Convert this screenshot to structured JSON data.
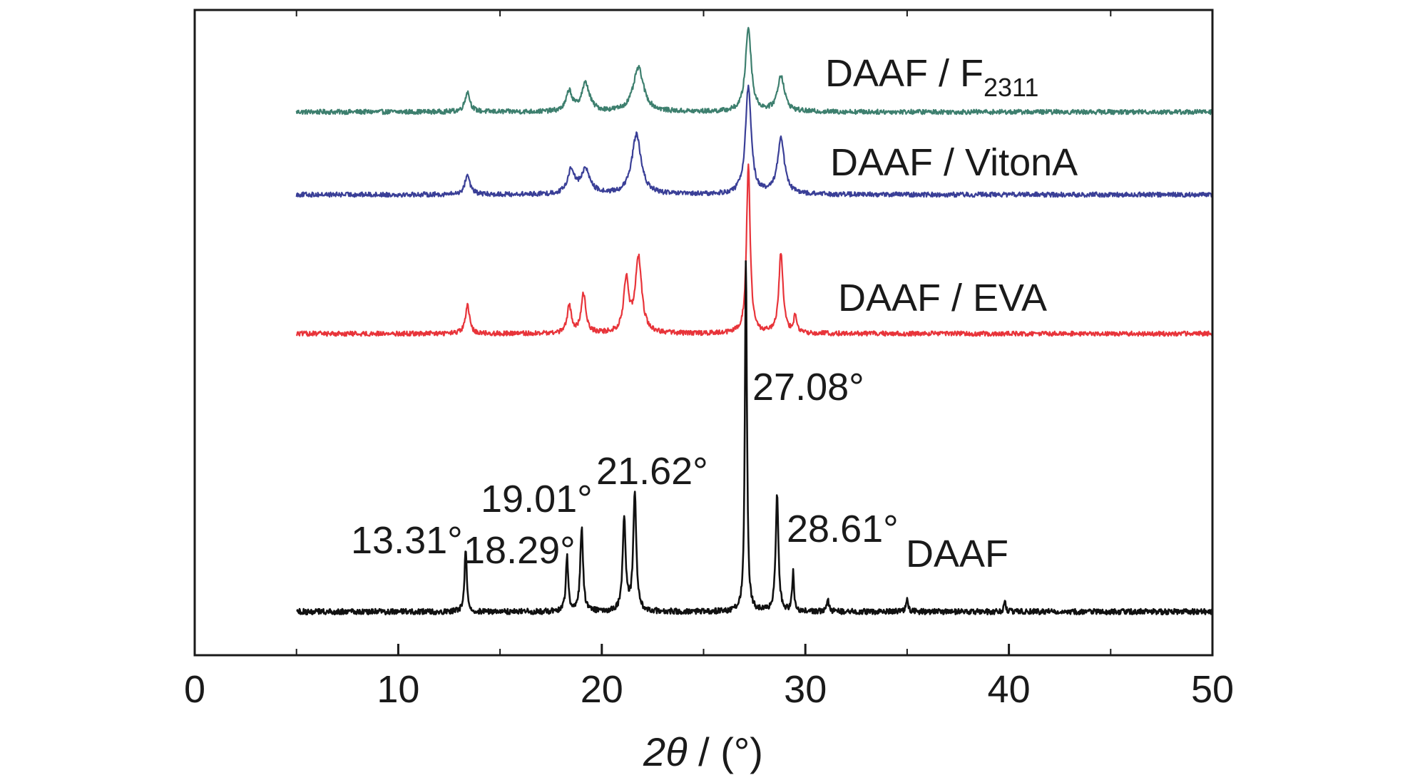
{
  "chart_data": {
    "type": "line",
    "xlabel_italic": "2θ",
    "xlabel_rest": " / (°)",
    "ylabel": "",
    "xlim": [
      0,
      50
    ],
    "xticks": [
      0,
      10,
      20,
      30,
      40,
      50
    ],
    "y_axis_ticks_labeled": false,
    "grid": false,
    "legend": "none (series labeled directly beside each trace)",
    "x_start": 5,
    "x_end": 50,
    "series": [
      {
        "name": "DAAF / F",
        "name_subscript": "2311",
        "color": "#3d7f6e",
        "baseline": 0.0,
        "noise": 0.006,
        "peaks": [
          {
            "x": 13.4,
            "height": 0.05,
            "width": 0.22
          },
          {
            "x": 18.4,
            "height": 0.05,
            "width": 0.25
          },
          {
            "x": 19.2,
            "height": 0.07,
            "width": 0.35
          },
          {
            "x": 21.8,
            "height": 0.11,
            "width": 0.45
          },
          {
            "x": 27.2,
            "height": 0.21,
            "width": 0.25
          },
          {
            "x": 28.8,
            "height": 0.09,
            "width": 0.3
          }
        ]
      },
      {
        "name": "DAAF / VitonA",
        "color": "#3a3f97",
        "baseline": 0.0,
        "noise": 0.006,
        "peaks": [
          {
            "x": 13.4,
            "height": 0.05,
            "width": 0.22
          },
          {
            "x": 18.5,
            "height": 0.06,
            "width": 0.3
          },
          {
            "x": 19.2,
            "height": 0.06,
            "width": 0.4
          },
          {
            "x": 21.7,
            "height": 0.15,
            "width": 0.4
          },
          {
            "x": 27.2,
            "height": 0.27,
            "width": 0.25
          },
          {
            "x": 28.8,
            "height": 0.14,
            "width": 0.3
          }
        ]
      },
      {
        "name": "DAAF / EVA",
        "color": "#e8343a",
        "baseline": 0.0,
        "noise": 0.006,
        "peaks": [
          {
            "x": 13.4,
            "height": 0.07,
            "width": 0.18
          },
          {
            "x": 18.4,
            "height": 0.07,
            "width": 0.18
          },
          {
            "x": 19.1,
            "height": 0.1,
            "width": 0.2
          },
          {
            "x": 21.2,
            "height": 0.13,
            "width": 0.22
          },
          {
            "x": 21.8,
            "height": 0.19,
            "width": 0.28
          },
          {
            "x": 27.2,
            "height": 0.42,
            "width": 0.16
          },
          {
            "x": 28.8,
            "height": 0.2,
            "width": 0.18
          },
          {
            "x": 29.5,
            "height": 0.04,
            "width": 0.15
          }
        ]
      },
      {
        "name": "DAAF",
        "color": "#111111",
        "baseline": 0.0,
        "noise": 0.007,
        "peaks": [
          {
            "x": 13.31,
            "height": 0.16,
            "width": 0.1
          },
          {
            "x": 18.29,
            "height": 0.14,
            "width": 0.1
          },
          {
            "x": 19.01,
            "height": 0.21,
            "width": 0.12
          },
          {
            "x": 21.1,
            "height": 0.23,
            "width": 0.13
          },
          {
            "x": 21.62,
            "height": 0.3,
            "width": 0.13
          },
          {
            "x": 27.08,
            "height": 0.88,
            "width": 0.09
          },
          {
            "x": 28.61,
            "height": 0.29,
            "width": 0.12
          },
          {
            "x": 29.4,
            "height": 0.1,
            "width": 0.08
          },
          {
            "x": 31.1,
            "height": 0.03,
            "width": 0.1
          },
          {
            "x": 35.0,
            "height": 0.03,
            "width": 0.1
          },
          {
            "x": 39.8,
            "height": 0.03,
            "width": 0.08
          }
        ]
      }
    ],
    "peak_annotations": [
      "13.31°",
      "18.29°",
      "19.01°",
      "21.62°",
      "27.08°",
      "28.61°"
    ]
  }
}
